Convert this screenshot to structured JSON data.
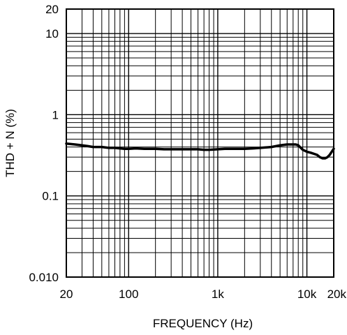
{
  "chart_data": {
    "type": "line",
    "xlabel": "FREQUENCY (Hz)",
    "ylabel": "THD + N (%)",
    "x_scale": "log",
    "y_scale": "log",
    "xlim": [
      20,
      20000
    ],
    "ylim": [
      0.01,
      20
    ],
    "grid": true,
    "x_ticks": [
      {
        "value": 20,
        "label": "20"
      },
      {
        "value": 100,
        "label": "100"
      },
      {
        "value": 1000,
        "label": "1k"
      },
      {
        "value": 10000,
        "label": "10k"
      },
      {
        "value": 20000,
        "label": "20k"
      }
    ],
    "y_ticks": [
      {
        "value": 20,
        "label": "20"
      },
      {
        "value": 10,
        "label": "10"
      },
      {
        "value": 1,
        "label": "1"
      },
      {
        "value": 0.1,
        "label": "0.1"
      },
      {
        "value": 0.01,
        "label": "0.010"
      }
    ],
    "series": [
      {
        "color": "#000000",
        "x": [
          20,
          25,
          30,
          35,
          40,
          50,
          60,
          70,
          80,
          90,
          100,
          120,
          150,
          200,
          250,
          300,
          400,
          500,
          600,
          700,
          800,
          1000,
          1200,
          1500,
          2000,
          2500,
          3000,
          4000,
          5000,
          6000,
          7000,
          7500,
          8000,
          9000,
          10000,
          11000,
          12000,
          13000,
          14000,
          15000,
          16000,
          17000,
          18000,
          19000,
          20000
        ],
        "y": [
          0.44,
          0.43,
          0.42,
          0.41,
          0.4,
          0.4,
          0.39,
          0.39,
          0.385,
          0.38,
          0.38,
          0.385,
          0.38,
          0.38,
          0.375,
          0.375,
          0.375,
          0.375,
          0.375,
          0.37,
          0.37,
          0.375,
          0.38,
          0.38,
          0.38,
          0.385,
          0.39,
          0.4,
          0.42,
          0.43,
          0.43,
          0.43,
          0.42,
          0.37,
          0.35,
          0.34,
          0.33,
          0.32,
          0.3,
          0.29,
          0.29,
          0.3,
          0.32,
          0.35,
          0.38
        ]
      }
    ]
  }
}
